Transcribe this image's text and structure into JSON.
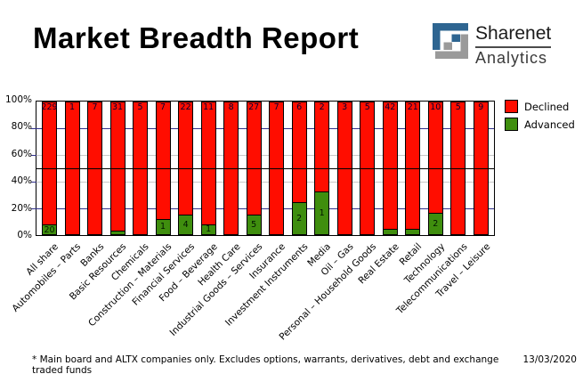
{
  "page_title": "Market Breadth Report",
  "logo": {
    "name": "Sharenet",
    "sub": "Analytics",
    "mark_blue": "#2e6591",
    "mark_gray": "#9a9a9a"
  },
  "legend": {
    "items": [
      {
        "label": "Declined",
        "color": "#ff0d00"
      },
      {
        "label": "Advanced",
        "color": "#3f8e0e"
      }
    ]
  },
  "y_axis": {
    "ticks": [
      "100%",
      "80%",
      "60%",
      "40%",
      "20%",
      "0%"
    ]
  },
  "footer": {
    "note": "* Main board and ALTX companies only. Excludes options, warrants, derivatives, debt and exchange traded funds",
    "date": "13/03/2020"
  },
  "chart_data": {
    "type": "bar",
    "stacked": true,
    "title": "Market Breadth Report",
    "ylabel": "",
    "ylim": [
      0,
      100
    ],
    "y_tick_labels": [
      "0%",
      "20%",
      "40%",
      "60%",
      "80%",
      "100%"
    ],
    "grid": "horizontal gridlines at 20/40/60/80%, solid black reference line at 50%",
    "legend_position": "top-right",
    "bar_unit": "percent of companies (counts shown as labels inside bars)",
    "categories": [
      "All share",
      "Automobiles – Parts",
      "Banks",
      "Basic Resources",
      "Chemicals",
      "Construction – Materials",
      "Financial Services",
      "Food – Beverage",
      "Health Care",
      "Industrial Goods – Services",
      "Insurance",
      "Investment Instruments",
      "Media",
      "Oil – Gas",
      "Personal – Household Goods",
      "Real Estate",
      "Retail",
      "Technology",
      "Telecommunications",
      "Travel – Leisure"
    ],
    "series": [
      {
        "name": "Declined",
        "color": "#ff0d00",
        "counts": [
          229,
          1,
          7,
          31,
          5,
          7,
          22,
          11,
          8,
          27,
          7,
          6,
          2,
          3,
          5,
          42,
          21,
          10,
          5,
          9
        ],
        "count_label_visible": [
          true,
          true,
          true,
          true,
          true,
          true,
          true,
          true,
          true,
          true,
          true,
          true,
          true,
          true,
          true,
          true,
          true,
          true,
          true,
          true
        ]
      },
      {
        "name": "Advanced",
        "color": "#3f8e0e",
        "counts": [
          20,
          0,
          0,
          1,
          0,
          1,
          4,
          1,
          0,
          5,
          0,
          2,
          1,
          0,
          0,
          2,
          1,
          2,
          0,
          0
        ],
        "count_label_visible": [
          true,
          false,
          false,
          false,
          false,
          true,
          true,
          true,
          false,
          true,
          false,
          true,
          true,
          false,
          false,
          false,
          false,
          true,
          false,
          false
        ]
      }
    ]
  }
}
